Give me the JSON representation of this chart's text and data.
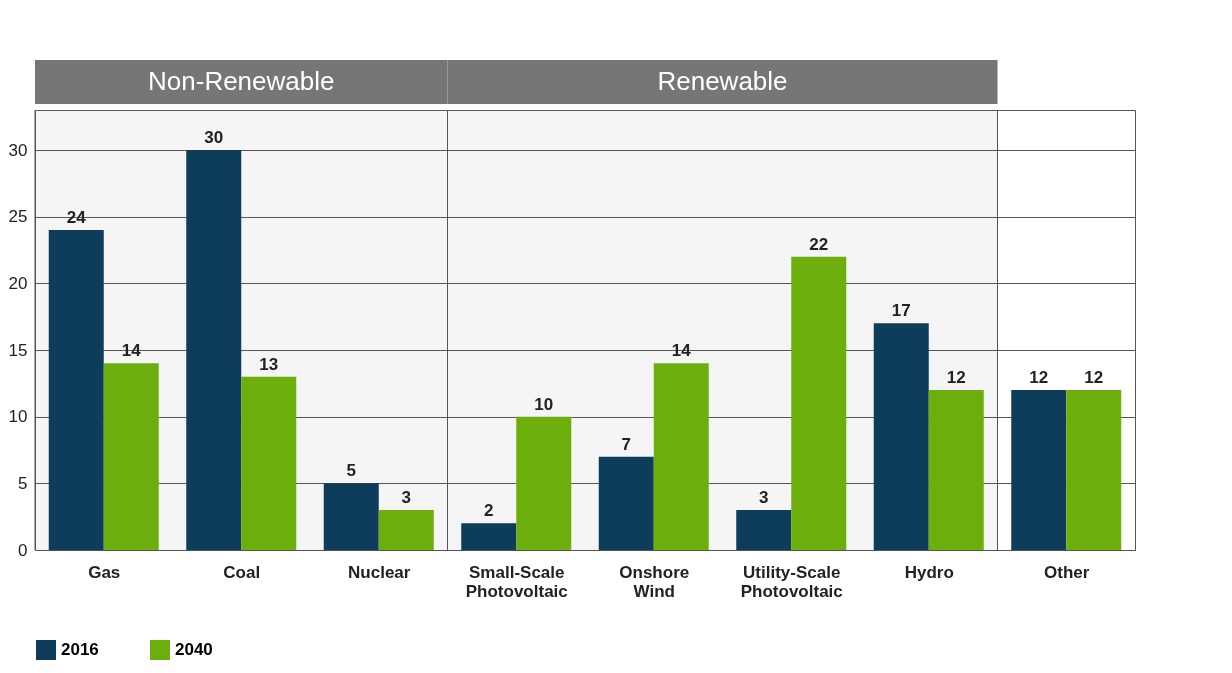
{
  "chart_data": {
    "type": "bar",
    "categories": [
      "Gas",
      "Coal",
      "Nuclear",
      "Small-Scale Photovoltaic",
      "Onshore Wind",
      "Utility-Scale Photovoltaic",
      "Hydro",
      "Other"
    ],
    "series": [
      {
        "name": "2016",
        "color": "#0e3d5c",
        "values": [
          24,
          30,
          5,
          2,
          7,
          3,
          17,
          12
        ]
      },
      {
        "name": "2040",
        "color": "#6cae0c",
        "values": [
          14,
          13,
          3,
          10,
          14,
          22,
          12,
          12
        ]
      }
    ],
    "bands": [
      {
        "axis": "x",
        "from": "Gas",
        "to": "Nuclear",
        "label": "Non-Renewable",
        "color": "#767676"
      },
      {
        "axis": "x",
        "from": "Small-Scale Photovoltaic",
        "to": "Hydro",
        "label": "Renewable",
        "color": "#767676"
      }
    ],
    "ylim": [
      0,
      33
    ],
    "yticks": [
      0,
      5,
      10,
      15,
      20,
      25,
      30
    ],
    "grid": "y",
    "legend": "bottom left",
    "data_labels": true
  }
}
